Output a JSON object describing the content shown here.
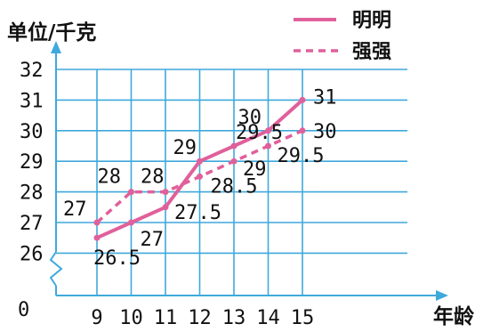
{
  "chart_data": {
    "type": "line",
    "y_axis_title": "单位/千克",
    "x_axis_title": "年龄",
    "origin_label": "0",
    "x": [
      9,
      10,
      11,
      12,
      13,
      14,
      15
    ],
    "y_ticks": [
      26,
      27,
      28,
      29,
      30,
      31,
      32
    ],
    "ylim": [
      26,
      32
    ],
    "grid": true,
    "y_axis_break": true,
    "legend_placement": "top-right",
    "series": [
      {
        "name": "明明",
        "line_style": "solid",
        "color": "#e0609b",
        "values": [
          26.5,
          27,
          27.5,
          29,
          29.5,
          30,
          31
        ],
        "labels": [
          "26.5",
          "27",
          "27.5",
          "29",
          "29.5",
          "30",
          "31"
        ]
      },
      {
        "name": "强强",
        "line_style": "dashed",
        "color": "#e0609b",
        "values": [
          27,
          28,
          28,
          28.5,
          29,
          29.5,
          30
        ],
        "labels": [
          "27",
          "28",
          "28",
          "28.5",
          "29",
          "29.5",
          "30"
        ]
      }
    ],
    "colors": {
      "grid": "#3fa9dc",
      "axis": "#3fa9dc",
      "text": "#111111"
    }
  }
}
